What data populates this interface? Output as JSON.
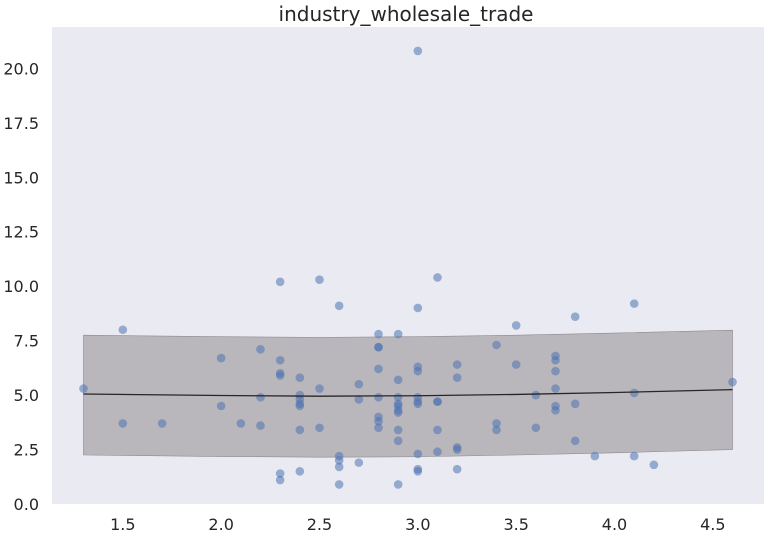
{
  "chart_data": {
    "type": "scatter",
    "title": "industry_wholesale_trade",
    "xlabel": "",
    "ylabel": "",
    "xlim": [
      1.14,
      4.76
    ],
    "ylim": [
      0,
      21.9
    ],
    "xticks": [
      1.5,
      2.0,
      2.5,
      3.0,
      3.5,
      4.0,
      4.5
    ],
    "yticks": [
      0.0,
      2.5,
      5.0,
      7.5,
      10.0,
      12.5,
      15.0,
      17.5,
      20.0
    ],
    "grid": false,
    "colors": {
      "background": "#eaeaf2",
      "points": "#4c72b0",
      "trend_line": "#262626",
      "band": "#a9a6aa"
    },
    "points": [
      {
        "x": 1.3,
        "y": 5.3
      },
      {
        "x": 1.5,
        "y": 8.0
      },
      {
        "x": 1.5,
        "y": 3.7
      },
      {
        "x": 1.7,
        "y": 3.7
      },
      {
        "x": 2.0,
        "y": 6.7
      },
      {
        "x": 2.0,
        "y": 4.5
      },
      {
        "x": 2.1,
        "y": 3.7
      },
      {
        "x": 2.2,
        "y": 7.1
      },
      {
        "x": 2.2,
        "y": 4.9
      },
      {
        "x": 2.2,
        "y": 3.6
      },
      {
        "x": 2.3,
        "y": 10.2
      },
      {
        "x": 2.3,
        "y": 6.6
      },
      {
        "x": 2.3,
        "y": 6.0
      },
      {
        "x": 2.3,
        "y": 5.9
      },
      {
        "x": 2.3,
        "y": 1.4
      },
      {
        "x": 2.3,
        "y": 1.1
      },
      {
        "x": 2.4,
        "y": 5.8
      },
      {
        "x": 2.4,
        "y": 5.0
      },
      {
        "x": 2.4,
        "y": 4.8
      },
      {
        "x": 2.4,
        "y": 4.6
      },
      {
        "x": 2.4,
        "y": 4.5
      },
      {
        "x": 2.4,
        "y": 3.4
      },
      {
        "x": 2.4,
        "y": 1.5
      },
      {
        "x": 2.5,
        "y": 10.3
      },
      {
        "x": 2.5,
        "y": 5.3
      },
      {
        "x": 2.5,
        "y": 3.5
      },
      {
        "x": 2.6,
        "y": 9.1
      },
      {
        "x": 2.6,
        "y": 2.2
      },
      {
        "x": 2.6,
        "y": 2.0
      },
      {
        "x": 2.6,
        "y": 1.7
      },
      {
        "x": 2.6,
        "y": 0.9
      },
      {
        "x": 2.7,
        "y": 5.5
      },
      {
        "x": 2.7,
        "y": 4.8
      },
      {
        "x": 2.7,
        "y": 1.9
      },
      {
        "x": 2.8,
        "y": 7.8
      },
      {
        "x": 2.8,
        "y": 7.2
      },
      {
        "x": 2.8,
        "y": 7.2
      },
      {
        "x": 2.8,
        "y": 6.2
      },
      {
        "x": 2.8,
        "y": 4.9
      },
      {
        "x": 2.8,
        "y": 4.0
      },
      {
        "x": 2.8,
        "y": 3.8
      },
      {
        "x": 2.8,
        "y": 3.5
      },
      {
        "x": 2.9,
        "y": 7.8
      },
      {
        "x": 2.9,
        "y": 5.7
      },
      {
        "x": 2.9,
        "y": 4.9
      },
      {
        "x": 2.9,
        "y": 4.6
      },
      {
        "x": 2.9,
        "y": 4.5
      },
      {
        "x": 2.9,
        "y": 4.3
      },
      {
        "x": 2.9,
        "y": 4.2
      },
      {
        "x": 2.9,
        "y": 3.4
      },
      {
        "x": 2.9,
        "y": 2.9
      },
      {
        "x": 2.9,
        "y": 0.9
      },
      {
        "x": 3.0,
        "y": 20.8
      },
      {
        "x": 3.0,
        "y": 9.0
      },
      {
        "x": 3.0,
        "y": 6.3
      },
      {
        "x": 3.0,
        "y": 6.1
      },
      {
        "x": 3.0,
        "y": 4.9
      },
      {
        "x": 3.0,
        "y": 4.7
      },
      {
        "x": 3.0,
        "y": 4.6
      },
      {
        "x": 3.0,
        "y": 2.3
      },
      {
        "x": 3.0,
        "y": 1.6
      },
      {
        "x": 3.0,
        "y": 1.5
      },
      {
        "x": 3.1,
        "y": 10.4
      },
      {
        "x": 3.1,
        "y": 4.7
      },
      {
        "x": 3.1,
        "y": 4.7
      },
      {
        "x": 3.1,
        "y": 3.4
      },
      {
        "x": 3.1,
        "y": 2.4
      },
      {
        "x": 3.2,
        "y": 6.4
      },
      {
        "x": 3.2,
        "y": 5.8
      },
      {
        "x": 3.2,
        "y": 2.6
      },
      {
        "x": 3.2,
        "y": 2.5
      },
      {
        "x": 3.2,
        "y": 1.6
      },
      {
        "x": 3.4,
        "y": 7.3
      },
      {
        "x": 3.4,
        "y": 3.7
      },
      {
        "x": 3.4,
        "y": 3.4
      },
      {
        "x": 3.5,
        "y": 8.2
      },
      {
        "x": 3.5,
        "y": 6.4
      },
      {
        "x": 3.6,
        "y": 5.0
      },
      {
        "x": 3.6,
        "y": 3.5
      },
      {
        "x": 3.7,
        "y": 6.8
      },
      {
        "x": 3.7,
        "y": 6.6
      },
      {
        "x": 3.7,
        "y": 6.1
      },
      {
        "x": 3.7,
        "y": 5.3
      },
      {
        "x": 3.7,
        "y": 4.5
      },
      {
        "x": 3.7,
        "y": 4.3
      },
      {
        "x": 3.8,
        "y": 8.6
      },
      {
        "x": 3.8,
        "y": 4.6
      },
      {
        "x": 3.8,
        "y": 2.9
      },
      {
        "x": 3.9,
        "y": 2.2
      },
      {
        "x": 4.1,
        "y": 9.2
      },
      {
        "x": 4.1,
        "y": 5.1
      },
      {
        "x": 4.1,
        "y": 2.2
      },
      {
        "x": 4.2,
        "y": 1.8
      },
      {
        "x": 4.6,
        "y": 5.6
      }
    ],
    "trend": {
      "x": [
        1.3,
        2.0,
        2.5,
        3.0,
        3.5,
        4.0,
        4.6
      ],
      "y": [
        5.05,
        4.98,
        4.95,
        4.97,
        5.03,
        5.12,
        5.25
      ]
    },
    "band": {
      "x": [
        1.3,
        2.0,
        2.5,
        3.0,
        3.5,
        4.0,
        4.6
      ],
      "lower": [
        2.25,
        2.18,
        2.15,
        2.17,
        2.25,
        2.35,
        2.5
      ],
      "upper": [
        7.75,
        7.68,
        7.65,
        7.68,
        7.75,
        7.85,
        7.98
      ]
    }
  }
}
